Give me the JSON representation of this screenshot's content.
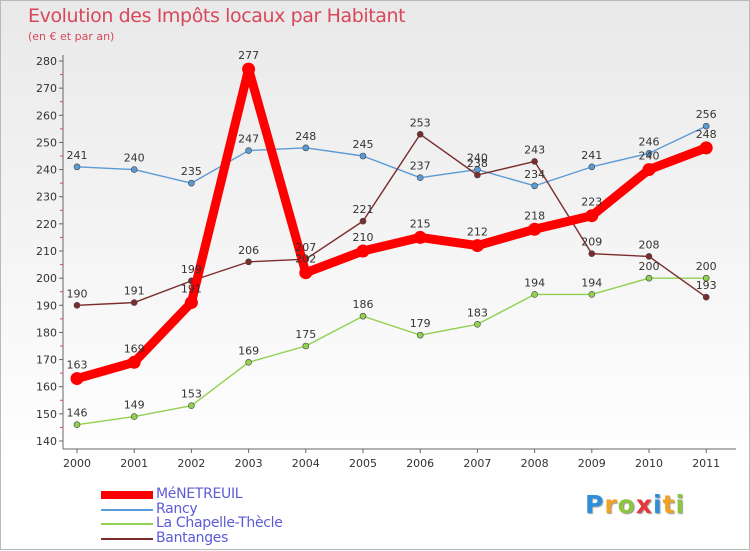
{
  "title": "Evolution des Impôts locaux par Habitant",
  "subtitle": "(en € et par an)",
  "logo": {
    "letters": [
      "P",
      "r",
      "o",
      "x",
      "i",
      "t",
      "i"
    ],
    "colors": [
      "#2e8fd8",
      "#f2a221",
      "#8cc63f",
      "#e8373a",
      "#2e8fd8",
      "#f2a221",
      "#8cc63f"
    ]
  },
  "chart_data": {
    "type": "line",
    "x": [
      "2000",
      "2001",
      "2002",
      "2003",
      "2004",
      "2005",
      "2006",
      "2007",
      "2008",
      "2009",
      "2010",
      "2011"
    ],
    "ylim": [
      140,
      280
    ],
    "yticks": [
      140,
      150,
      160,
      170,
      180,
      190,
      200,
      210,
      220,
      230,
      240,
      250,
      260,
      270,
      280
    ],
    "grid": false,
    "legend_position": "bottom-left",
    "series": [
      {
        "name": "MéNETREUIL",
        "color": "#ff0000",
        "values": [
          163,
          169,
          191,
          277,
          202,
          210,
          215,
          212,
          218,
          223,
          240,
          248
        ]
      },
      {
        "name": "Rancy",
        "color": "#5b9bd5",
        "values": [
          241,
          240,
          235,
          247,
          248,
          245,
          237,
          240,
          234,
          241,
          246,
          256
        ]
      },
      {
        "name": "La Chapelle-Thècle",
        "color": "#92d050",
        "values": [
          146,
          149,
          153,
          169,
          175,
          186,
          179,
          183,
          194,
          194,
          200,
          200
        ]
      },
      {
        "name": "Bantanges",
        "color": "#7b2c2c",
        "values": [
          190,
          191,
          199,
          206,
          207,
          221,
          253,
          238,
          243,
          209,
          208,
          193
        ]
      }
    ]
  }
}
